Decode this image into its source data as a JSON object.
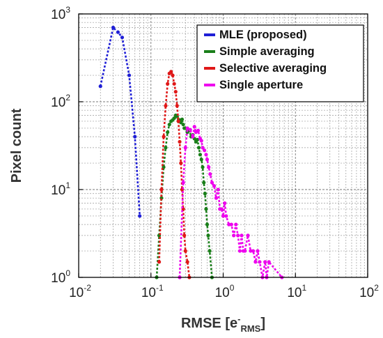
{
  "chart_data": {
    "type": "line",
    "xlabel": {
      "main": "RMSE [e",
      "sup": "-",
      "sub": "RMS",
      "close": "]"
    },
    "ylabel": "Pixel count",
    "x_scale": "log",
    "y_scale": "log",
    "xlim": [
      0.01,
      100
    ],
    "ylim": [
      1,
      1000
    ],
    "grid": true,
    "legend_position": "top-right",
    "x_ticks": [
      {
        "base": "10",
        "exp": "-2"
      },
      {
        "base": "10",
        "exp": "-1"
      },
      {
        "base": "10",
        "exp": "0"
      },
      {
        "base": "10",
        "exp": "1"
      },
      {
        "base": "10",
        "exp": "2"
      }
    ],
    "y_ticks": [
      {
        "base": "10",
        "exp": "0"
      },
      {
        "base": "10",
        "exp": "1"
      },
      {
        "base": "10",
        "exp": "2"
      },
      {
        "base": "10",
        "exp": "3"
      }
    ],
    "series": [
      {
        "name": "MLE (proposed)",
        "color": "#1f1fd6",
        "x": [
          0.02,
          0.03,
          0.035,
          0.04,
          0.05,
          0.06,
          0.07
        ],
        "y": [
          150,
          700,
          620,
          540,
          200,
          40,
          5
        ]
      },
      {
        "name": "Simple averaging",
        "color": "#1a7f1a",
        "x": [
          0.12,
          0.13,
          0.14,
          0.15,
          0.16,
          0.17,
          0.18,
          0.19,
          0.2,
          0.21,
          0.22,
          0.23,
          0.24,
          0.25,
          0.26,
          0.27,
          0.28,
          0.29,
          0.3,
          0.32,
          0.34,
          0.36,
          0.38,
          0.4,
          0.42,
          0.44,
          0.46,
          0.48,
          0.5,
          0.52,
          0.54,
          0.56,
          0.58,
          0.6,
          0.62,
          0.65,
          0.7
        ],
        "y": [
          1,
          3,
          8,
          18,
          30,
          45,
          55,
          60,
          62,
          65,
          70,
          68,
          60,
          62,
          58,
          63,
          55,
          50,
          50,
          45,
          47,
          40,
          42,
          38,
          35,
          37,
          30,
          25,
          22,
          18,
          12,
          9,
          6,
          4,
          3,
          2,
          1
        ]
      },
      {
        "name": "Selective averaging",
        "color": "#e01818",
        "x": [
          0.13,
          0.14,
          0.15,
          0.16,
          0.17,
          0.18,
          0.19,
          0.2,
          0.21,
          0.22,
          0.23,
          0.24,
          0.25,
          0.26,
          0.27,
          0.28,
          0.29,
          0.3,
          0.32,
          0.34
        ],
        "y": [
          1.5,
          10,
          40,
          90,
          160,
          210,
          220,
          200,
          160,
          130,
          90,
          60,
          35,
          20,
          10,
          6,
          3,
          2,
          1.5,
          1
        ]
      },
      {
        "name": "Single aperture",
        "color": "#ee00ee",
        "x": [
          0.25,
          0.28,
          0.3,
          0.32,
          0.35,
          0.38,
          0.4,
          0.42,
          0.45,
          0.48,
          0.5,
          0.52,
          0.55,
          0.58,
          0.6,
          0.63,
          0.66,
          0.7,
          0.75,
          0.8,
          0.85,
          0.9,
          0.95,
          1.0,
          1.05,
          1.1,
          1.2,
          1.3,
          1.4,
          1.5,
          1.6,
          1.7,
          1.8,
          1.9,
          2.0,
          2.2,
          2.4,
          2.6,
          2.8,
          3.0,
          3.2,
          3.5,
          3.8,
          4.0,
          4.3,
          6.5
        ],
        "y": [
          1,
          12,
          30,
          50,
          48,
          40,
          52,
          45,
          47,
          38,
          36,
          30,
          28,
          25,
          22,
          18,
          15,
          12,
          11,
          8,
          10,
          6,
          6,
          5,
          7,
          5,
          4,
          4,
          3,
          4,
          3,
          2,
          3,
          2,
          2,
          3,
          2,
          2,
          1.5,
          2,
          1.5,
          1,
          1.5,
          1,
          1.5,
          1
        ]
      }
    ]
  }
}
